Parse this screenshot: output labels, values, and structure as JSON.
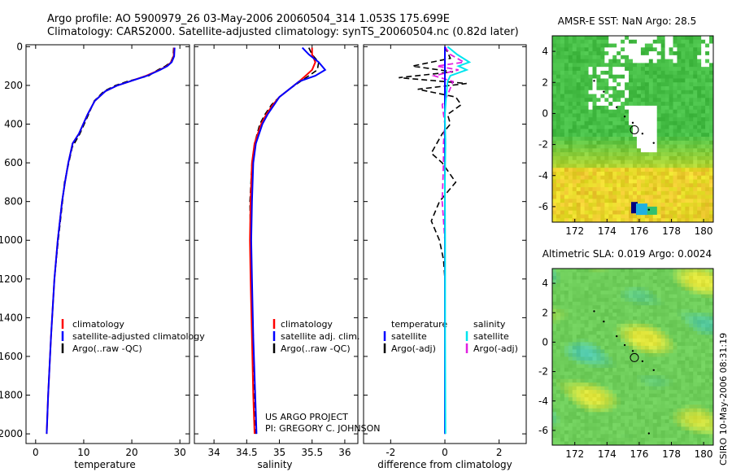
{
  "title": {
    "line1": "Argo profile: AO 5900979_26 03-May-2006 20060504_314 1.053S 175.699E",
    "line2": "Climatology: CARS2000. Satellite-adjusted climatology: synTS_20060504.nc (0.82d later)"
  },
  "credits": {
    "project": "US ARGO PROJECT",
    "pi": "PI: GREGORY C. JOHNSON",
    "side": "CSIRO 10-May-2006 08:31:19"
  },
  "colors": {
    "climatology": "#ff0000",
    "satellite": "#0000ff",
    "argo": "#000000",
    "satellite_diff": "#00e5ee",
    "argo_adj_diff": "#e020e0"
  },
  "chart_data": [
    {
      "type": "line",
      "id": "temperature",
      "xlabel": "temperature",
      "xlim": [
        -2,
        32
      ],
      "ylim": [
        2050,
        -10
      ],
      "xticks": [
        0,
        10,
        20,
        30
      ],
      "yticks": [
        0,
        200,
        400,
        600,
        800,
        1000,
        1200,
        1400,
        1600,
        1800,
        2000
      ],
      "legend": [
        "climatology",
        "satellite-adjusted climatology",
        "Argo(..raw -QC)"
      ],
      "series": [
        {
          "name": "climatology",
          "role": "clim",
          "depth": [
            5,
            50,
            80,
            100,
            120,
            150,
            180,
            200,
            230,
            280,
            350,
            450,
            500,
            600,
            700,
            800,
            1000,
            1200,
            1500,
            1800,
            2000
          ],
          "values": [
            28.8,
            28.7,
            28.2,
            27.3,
            25.8,
            23.0,
            19.5,
            17.0,
            14.5,
            12.3,
            10.8,
            9.0,
            7.7,
            6.8,
            6.1,
            5.5,
            4.6,
            3.9,
            3.2,
            2.6,
            2.3
          ]
        },
        {
          "name": "satellite-adjusted climatology",
          "role": "sat",
          "depth": [
            5,
            50,
            80,
            100,
            120,
            150,
            180,
            200,
            230,
            280,
            350,
            450,
            500,
            600,
            700,
            800,
            1000,
            1200,
            1500,
            1800,
            2000
          ],
          "values": [
            28.9,
            28.8,
            28.3,
            27.4,
            25.9,
            23.2,
            19.5,
            17.0,
            14.5,
            12.3,
            10.8,
            9.0,
            7.7,
            6.8,
            6.1,
            5.5,
            4.6,
            3.9,
            3.2,
            2.6,
            2.3
          ]
        },
        {
          "name": "Argo(..raw -QC)",
          "role": "argo",
          "depth": [
            5,
            50,
            80,
            100,
            120,
            150,
            180,
            200,
            230,
            280,
            350,
            450,
            520,
            600,
            700,
            800,
            1000,
            1200,
            1500,
            1800,
            2000
          ],
          "values": [
            28.7,
            28.6,
            28.1,
            27.0,
            25.4,
            23.5,
            19.0,
            16.6,
            14.2,
            12.2,
            11.0,
            9.2,
            7.6,
            6.9,
            6.0,
            5.6,
            4.7,
            3.9,
            3.2,
            2.6,
            2.3
          ]
        }
      ]
    },
    {
      "type": "line",
      "id": "salinity",
      "xlabel": "salinity",
      "xlim": [
        33.7,
        36.2
      ],
      "ylim": [
        2050,
        -10
      ],
      "xticks": [
        34,
        34.5,
        35,
        35.5,
        36
      ],
      "legend": [
        "climatology",
        "satellite adj. clim.",
        "Argo(..raw -QC)"
      ],
      "series": [
        {
          "name": "climatology",
          "role": "clim",
          "depth": [
            5,
            40,
            80,
            120,
            150,
            180,
            220,
            260,
            300,
            350,
            400,
            500,
            600,
            800,
            1000,
            1200,
            1500,
            1800,
            2000
          ],
          "values": [
            35.5,
            35.5,
            35.55,
            35.5,
            35.4,
            35.3,
            35.15,
            35.0,
            34.9,
            34.8,
            34.72,
            34.62,
            34.58,
            34.56,
            34.55,
            34.56,
            34.58,
            34.6,
            34.62
          ]
        },
        {
          "name": "satellite adj. clim.",
          "role": "sat",
          "depth": [
            5,
            40,
            80,
            120,
            150,
            180,
            220,
            260,
            300,
            350,
            400,
            500,
            600,
            800,
            1000,
            1200,
            1500,
            1800,
            2000
          ],
          "values": [
            35.35,
            35.45,
            35.6,
            35.7,
            35.55,
            35.3,
            35.15,
            35.0,
            34.92,
            34.82,
            34.74,
            34.64,
            34.6,
            34.58,
            34.57,
            34.58,
            34.6,
            34.63,
            34.65
          ]
        },
        {
          "name": "Argo(..raw -QC)",
          "role": "argo",
          "depth": [
            5,
            40,
            80,
            120,
            150,
            180,
            220,
            260,
            300,
            350,
            400,
            500,
            600,
            800,
            1000,
            1200,
            1500,
            1800,
            2000
          ],
          "values": [
            35.45,
            35.5,
            35.6,
            35.58,
            35.45,
            35.32,
            35.15,
            35.0,
            34.88,
            34.78,
            34.7,
            34.62,
            34.58,
            34.55,
            34.56,
            34.57,
            34.6,
            34.62,
            34.64
          ]
        }
      ]
    },
    {
      "type": "line",
      "id": "difference",
      "xlabel": "difference from climatology",
      "xlim": [
        -3,
        3
      ],
      "ylim": [
        2050,
        -10
      ],
      "xticks": [
        -2,
        0,
        2
      ],
      "legend_titles": [
        "temperature",
        "salinity"
      ],
      "legend": [
        "satellite",
        "Argo(-adj)",
        "satellite",
        "Argo(-adj)"
      ],
      "series": [
        {
          "name": "temperature satellite",
          "role": "sat",
          "depth": [
            0,
            2000
          ],
          "values": [
            0,
            0
          ]
        },
        {
          "name": "temperature Argo(-adj)",
          "role": "argo",
          "depth": [
            0,
            60,
            100,
            130,
            160,
            190,
            220,
            260,
            300,
            350,
            400,
            450,
            500,
            550,
            600,
            700,
            800,
            900,
            1000,
            1100,
            1200,
            1400,
            1600,
            2000
          ],
          "values": [
            0,
            0.2,
            -1.2,
            0.3,
            -1.7,
            0.8,
            -1.0,
            0.4,
            0.6,
            0.1,
            0.2,
            -0.1,
            -0.3,
            -0.5,
            -0.1,
            0.4,
            -0.2,
            -0.5,
            -0.2,
            -0.05,
            0,
            0,
            0,
            0
          ]
        },
        {
          "name": "salinity satellite",
          "role": "sat_s",
          "depth": [
            0,
            40,
            80,
            100,
            120,
            150,
            180,
            250,
            350,
            500,
            700,
            1000,
            1500,
            2000
          ],
          "values": [
            0.1,
            0.45,
            0.9,
            0.5,
            0.8,
            0.2,
            0.1,
            0.05,
            0,
            0.02,
            0,
            0.01,
            0.01,
            0.02
          ]
        },
        {
          "name": "salinity Argo(-adj)",
          "role": "argo_s",
          "depth": [
            0,
            40,
            80,
            100,
            120,
            150,
            180,
            250,
            300,
            400,
            500,
            600,
            800,
            1000,
            1200,
            1500,
            2000
          ],
          "values": [
            0,
            0.2,
            0.7,
            -0.3,
            0.5,
            -0.4,
            0.3,
            0.1,
            -0.1,
            0,
            -0.05,
            -0.05,
            -0.1,
            0,
            0,
            0,
            0
          ]
        }
      ]
    },
    {
      "type": "heatmap",
      "id": "sst_map",
      "title": "AMSR-E SST: NaN Argo: 28.5",
      "xlim": [
        170.6,
        180.6
      ],
      "ylim": [
        -7.0,
        5.0
      ],
      "xticks": [
        172,
        174,
        176,
        178,
        180
      ],
      "yticks": [
        -6,
        -4,
        -2,
        0,
        2,
        4
      ],
      "marker": {
        "lon": 175.7,
        "lat": -1.05
      }
    },
    {
      "type": "heatmap",
      "id": "sla_map",
      "title": "Altimetric SLA: 0.019 Argo: 0.0024",
      "xlim": [
        170.6,
        180.6
      ],
      "ylim": [
        -7.0,
        5.0
      ],
      "xticks": [
        172,
        174,
        176,
        178,
        180
      ],
      "yticks": [
        -6,
        -4,
        -2,
        0,
        2,
        4
      ],
      "marker": {
        "lon": 175.7,
        "lat": -1.05
      }
    }
  ]
}
